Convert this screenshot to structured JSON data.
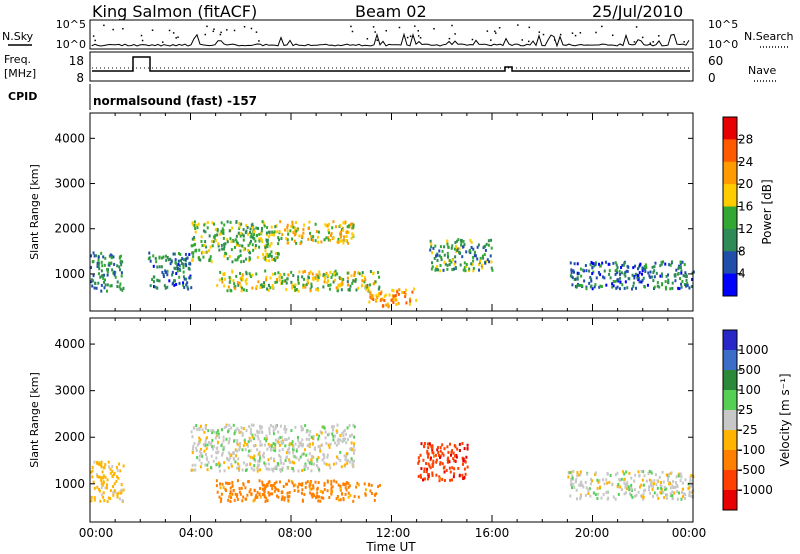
{
  "header": {
    "station": "King Salmon (fitACF)",
    "beam": "Beam 02",
    "date": "25/Jul/2010"
  },
  "control_panel": {
    "nsky_label": "N.Sky",
    "nsearch_label": "N.Search",
    "freq_label": "Freq.",
    "freq_unit_label": "[MHz]",
    "nave_label": "Nave",
    "cpid_label": "CPID",
    "program_label": "normalsound (fast) -157",
    "noise_left_ticks": [
      "10^5",
      "10^0"
    ],
    "noise_right_ticks": [
      "10^5",
      "10^0"
    ],
    "freq_ticks": [
      "18",
      "8"
    ],
    "nave_ticks": [
      "60",
      "0"
    ]
  },
  "x_axis": {
    "label": "Time UT",
    "ticks": [
      "00:00",
      "04:00",
      "08:00",
      "12:00",
      "16:00",
      "20:00",
      "00:00"
    ]
  },
  "power_colorbar": {
    "label": "Power [dB]",
    "ticks": [
      "28",
      "24",
      "20",
      "16",
      "12",
      "8",
      "4"
    ],
    "colors": [
      "#e60000",
      "#ff5a00",
      "#ff9a00",
      "#ffcc00",
      "#32a832",
      "#2e8b57",
      "#1f4faa",
      "#0000ff"
    ]
  },
  "velocity_colorbar": {
    "label": "Velocity [m s⁻¹]",
    "ticks": [
      "1000",
      "500",
      "100",
      "25",
      "-25",
      "-100",
      "-500",
      "-1000"
    ],
    "colors": [
      "#2828c8",
      "#3a6ec8",
      "#2a8a3a",
      "#55d055",
      "#c8c8c8",
      "#ffb400",
      "#ff8000",
      "#ff4000",
      "#e60000"
    ]
  },
  "chart_data": [
    {
      "type": "heatmap",
      "title": "Power",
      "xlabel": "Time UT",
      "ylabel": "Slant Range [km]",
      "xlim": [
        0,
        24
      ],
      "ylim": [
        180,
        4560
      ],
      "yticks": [
        1000,
        2000,
        3000,
        4000
      ],
      "colorbar": {
        "label": "Power [dB]",
        "range": [
          0,
          32
        ]
      },
      "features": [
        {
          "t": [
            0.0,
            1.3
          ],
          "r": [
            650,
            1500
          ],
          "p": 10
        },
        {
          "t": [
            2.3,
            4.0
          ],
          "r": [
            700,
            1500
          ],
          "p": 9
        },
        {
          "t": [
            4.0,
            7.5
          ],
          "r": [
            1300,
            2200
          ],
          "p": 14
        },
        {
          "t": [
            7.5,
            10.5
          ],
          "r": [
            1700,
            2200
          ],
          "p": 18
        },
        {
          "t": [
            5.0,
            11.5
          ],
          "r": [
            650,
            1100
          ],
          "p": 16
        },
        {
          "t": [
            11.0,
            13.0
          ],
          "r": [
            300,
            700
          ],
          "p": 22
        },
        {
          "t": [
            13.5,
            16.0
          ],
          "r": [
            1100,
            1800
          ],
          "p": 12
        },
        {
          "t": [
            19.0,
            24.0
          ],
          "r": [
            700,
            1300
          ],
          "p": 8
        }
      ]
    },
    {
      "type": "heatmap",
      "title": "Velocity",
      "xlabel": "Time UT",
      "ylabel": "Slant Range [km]",
      "xlim": [
        0,
        24
      ],
      "ylim": [
        180,
        4560
      ],
      "yticks": [
        1000,
        2000,
        3000,
        4000
      ],
      "colorbar": {
        "label": "Velocity [m s⁻¹]",
        "range": [
          -1000,
          1000
        ]
      },
      "features": [
        {
          "t": [
            0.0,
            1.3
          ],
          "r": [
            650,
            1500
          ],
          "v": -50
        },
        {
          "t": [
            4.0,
            10.5
          ],
          "r": [
            1300,
            2300
          ],
          "v": 0
        },
        {
          "t": [
            5.0,
            11.5
          ],
          "r": [
            650,
            1100
          ],
          "v": -150
        },
        {
          "t": [
            13.0,
            15.0
          ],
          "r": [
            1100,
            1900
          ],
          "v": -800
        },
        {
          "t": [
            19.0,
            24.0
          ],
          "r": [
            700,
            1300
          ],
          "v": 0
        }
      ]
    }
  ]
}
